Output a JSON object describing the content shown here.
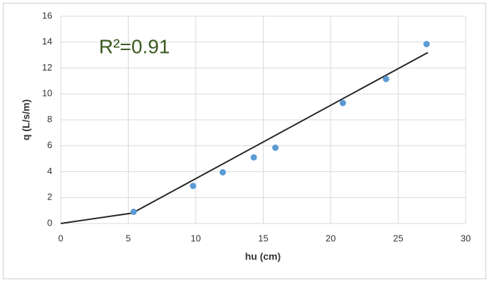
{
  "chart_data": {
    "type": "scatter",
    "annotation": "R²=0.91",
    "annotation_color": "#3a5a1e",
    "x_label": "hu (cm)",
    "y_label": "q (L/s/m)",
    "xlim": [
      0,
      30
    ],
    "xticks": [
      0,
      5,
      10,
      15,
      20,
      25,
      30
    ],
    "ylim": [
      0,
      16
    ],
    "yticks": [
      0,
      2,
      4,
      6,
      8,
      10,
      12,
      14,
      16
    ],
    "grid": true,
    "points": {
      "color": "#5b9bd5",
      "x": [
        5.4,
        9.8,
        12.0,
        14.3,
        15.9,
        20.9,
        24.1,
        27.1
      ],
      "y": [
        0.9,
        2.9,
        3.95,
        5.1,
        5.85,
        9.3,
        11.15,
        13.85
      ]
    },
    "fit_line": {
      "color": "#262626",
      "x": [
        0,
        5.3,
        27.2
      ],
      "y": [
        0,
        0.8,
        13.2
      ]
    }
  }
}
